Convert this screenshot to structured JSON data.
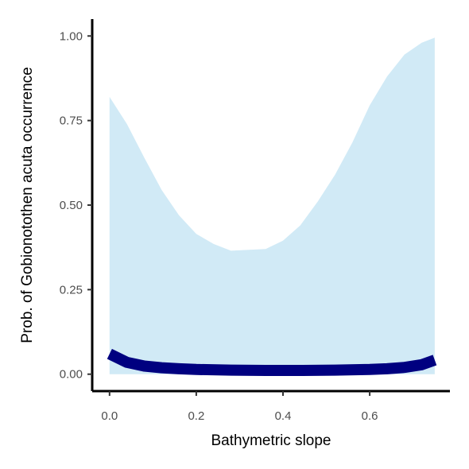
{
  "chart_data": {
    "type": "line",
    "title": "",
    "xlabel": "Bathymetric slope",
    "ylabel": "Prob. of  Gobionotothen acuta  occurrence",
    "xlim": [
      -0.04,
      0.785
    ],
    "ylim": [
      -0.05,
      1.05
    ],
    "xticks": [
      0.0,
      0.2,
      0.4,
      0.6
    ],
    "xtick_labels": [
      "0.0",
      "0.2",
      "0.4",
      "0.6"
    ],
    "yticks": [
      0.0,
      0.25,
      0.5,
      0.75,
      1.0
    ],
    "ytick_labels": [
      "0.00",
      "0.25",
      "0.50",
      "0.75",
      "1.00"
    ],
    "grid": false,
    "legend": "none",
    "series": [
      {
        "kind": "ribbon",
        "color": "#d1eaf6",
        "x": [
          0.0,
          0.04,
          0.08,
          0.12,
          0.16,
          0.2,
          0.24,
          0.28,
          0.36,
          0.4,
          0.44,
          0.48,
          0.52,
          0.56,
          0.6,
          0.64,
          0.68,
          0.72,
          0.75
        ],
        "lower": [
          0.0,
          0.0,
          0.0,
          0.0,
          0.0,
          0.0,
          0.0,
          0.0,
          0.0,
          0.0,
          0.0,
          0.0,
          0.0,
          0.0,
          0.0,
          0.0,
          0.0,
          0.0,
          0.0
        ],
        "upper": [
          0.82,
          0.74,
          0.64,
          0.545,
          0.47,
          0.415,
          0.385,
          0.365,
          0.37,
          0.395,
          0.44,
          0.51,
          0.59,
          0.685,
          0.795,
          0.88,
          0.945,
          0.98,
          0.995
        ]
      },
      {
        "kind": "line",
        "color": "#000080",
        "x": [
          0.0,
          0.04,
          0.08,
          0.12,
          0.16,
          0.2,
          0.28,
          0.36,
          0.44,
          0.52,
          0.6,
          0.64,
          0.68,
          0.72,
          0.75
        ],
        "y": [
          0.06,
          0.035,
          0.024,
          0.019,
          0.016,
          0.014,
          0.012,
          0.011,
          0.011,
          0.012,
          0.014,
          0.016,
          0.02,
          0.028,
          0.042
        ]
      }
    ]
  }
}
